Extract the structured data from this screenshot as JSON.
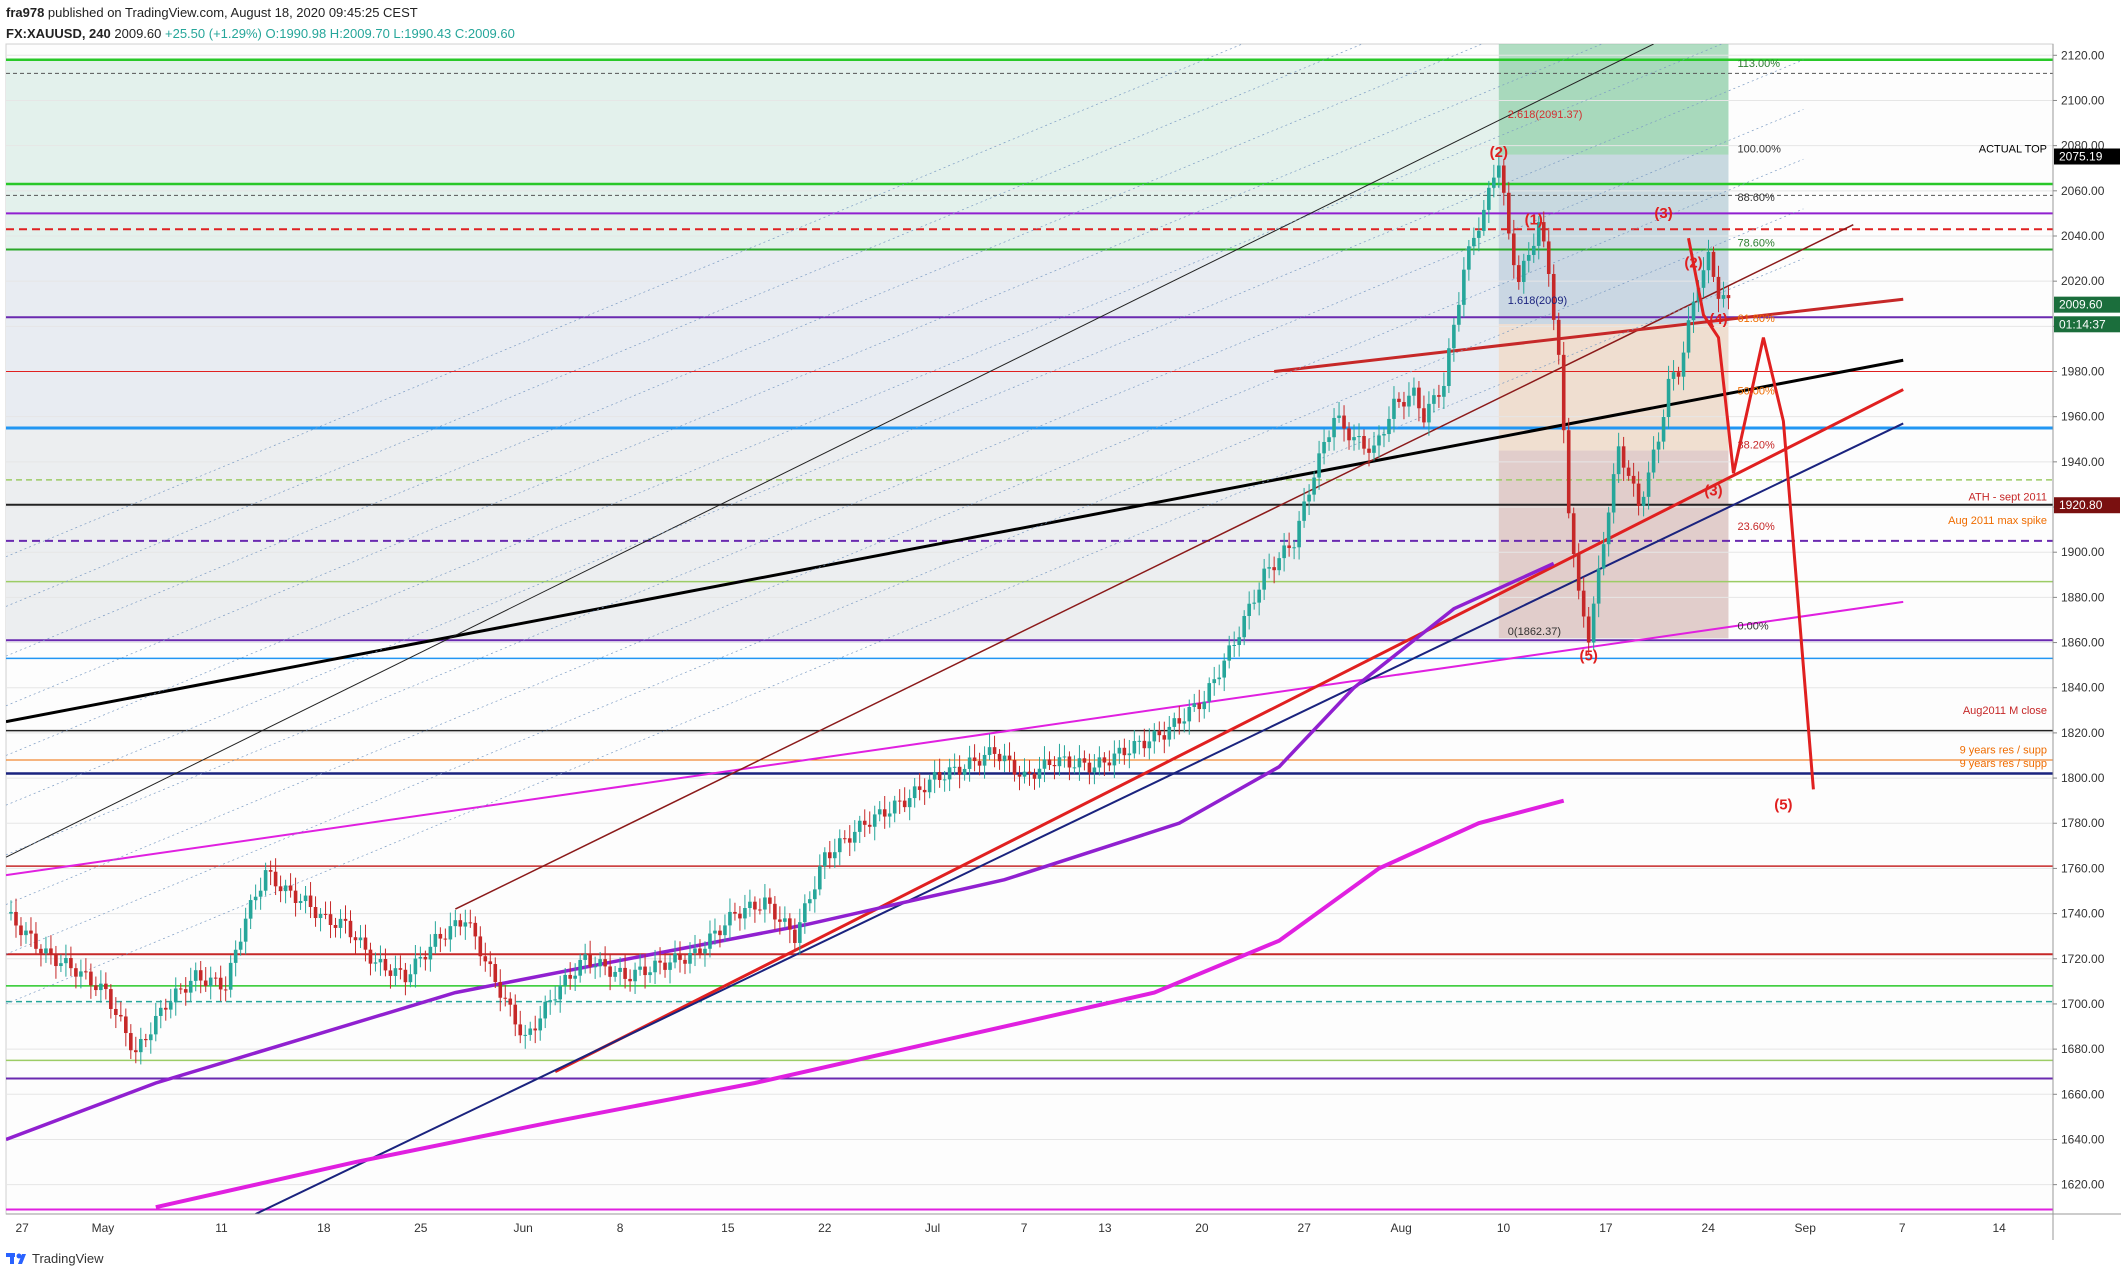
{
  "header": {
    "publisher": "fra978",
    "published_text": " published on TradingView.com, August 18, 2020 09:45:25 CEST",
    "symbol": "FX:XAUUSD, 240",
    "last": "2009.60",
    "change": "+25.50 (+1.29%)",
    "ohlc": "O:1990.98 H:2009.70 L:1990.43 C:2009.60"
  },
  "footer": {
    "brand": "TradingView"
  },
  "colors": {
    "up_candle": "#26a69a",
    "down_candle": "#c62828",
    "wave_red": "#e02020",
    "magenta": "#e020e0",
    "purple": "#9020d0",
    "navy": "#1a237e",
    "green_line": "#28c828"
  },
  "chart_data": {
    "type": "candlestick",
    "symbol": "XAUUSD",
    "timeframe": "240",
    "ylim": [
      1607,
      2125
    ],
    "y_ticks": [
      "2120.00",
      "2100.00",
      "2080.00",
      "2060.00",
      "2040.00",
      "2020.00",
      "2000.00",
      "1980.00",
      "1960.00",
      "1940.00",
      "1920.00",
      "1900.00",
      "1880.00",
      "1860.00",
      "1840.00",
      "1820.00",
      "1800.00",
      "1780.00",
      "1760.00",
      "1740.00",
      "1720.00",
      "1700.00",
      "1680.00",
      "1660.00",
      "1640.00",
      "1620.00"
    ],
    "x_ticks": [
      "27",
      "May",
      "11",
      "18",
      "25",
      "Jun",
      "8",
      "15",
      "22",
      "Jul",
      "7",
      "13",
      "20",
      "27",
      "Aug",
      "10",
      "17",
      "24",
      "Sep",
      "7",
      "14"
    ],
    "price_badges": [
      {
        "price": 2075.19,
        "text": "2075.19",
        "bg": "#000000"
      },
      {
        "price": 2009.6,
        "text": "2009.60",
        "bg": "#1b6e3c"
      },
      {
        "price": 2000.9,
        "text": "01:14:37",
        "bg": "#1b6e3c"
      },
      {
        "price": 1920.8,
        "text": "1920.80",
        "bg": "#7a1010"
      }
    ],
    "price_path": [
      [
        0,
        1740
      ],
      [
        8,
        1722
      ],
      [
        14,
        1715
      ],
      [
        20,
        1705
      ],
      [
        26,
        1678
      ],
      [
        32,
        1700
      ],
      [
        38,
        1712
      ],
      [
        44,
        1708
      ],
      [
        48,
        1738
      ],
      [
        52,
        1758
      ],
      [
        56,
        1750
      ],
      [
        60,
        1745
      ],
      [
        64,
        1737
      ],
      [
        68,
        1735
      ],
      [
        74,
        1718
      ],
      [
        80,
        1712
      ],
      [
        86,
        1728
      ],
      [
        92,
        1738
      ],
      [
        98,
        1710
      ],
      [
        104,
        1684
      ],
      [
        110,
        1705
      ],
      [
        116,
        1720
      ],
      [
        124,
        1712
      ],
      [
        132,
        1718
      ],
      [
        138,
        1722
      ],
      [
        146,
        1740
      ],
      [
        152,
        1745
      ],
      [
        158,
        1730
      ],
      [
        164,
        1765
      ],
      [
        172,
        1780
      ],
      [
        180,
        1790
      ],
      [
        186,
        1800
      ],
      [
        192,
        1805
      ],
      [
        198,
        1812
      ],
      [
        204,
        1800
      ],
      [
        210,
        1808
      ],
      [
        218,
        1805
      ],
      [
        224,
        1812
      ],
      [
        232,
        1820
      ],
      [
        240,
        1835
      ],
      [
        246,
        1860
      ],
      [
        252,
        1890
      ],
      [
        258,
        1905
      ],
      [
        262,
        1935
      ],
      [
        266,
        1960
      ],
      [
        270,
        1950
      ],
      [
        274,
        1945
      ],
      [
        278,
        1965
      ],
      [
        282,
        1970
      ],
      [
        284,
        1960
      ],
      [
        288,
        1975
      ],
      [
        290,
        2000
      ],
      [
        292,
        2025
      ],
      [
        294,
        2040
      ],
      [
        296,
        2050
      ],
      [
        298,
        2068
      ],
      [
        299,
        2073
      ],
      [
        301,
        2040
      ],
      [
        303,
        2020
      ],
      [
        305,
        2032
      ],
      [
        307,
        2045
      ],
      [
        309,
        2025
      ],
      [
        311,
        1985
      ],
      [
        313,
        1920
      ],
      [
        315,
        1880
      ],
      [
        317,
        1863
      ],
      [
        319,
        1890
      ],
      [
        321,
        1920
      ],
      [
        323,
        1945
      ],
      [
        325,
        1935
      ],
      [
        327,
        1920
      ],
      [
        329,
        1935
      ],
      [
        331,
        1950
      ],
      [
        333,
        1975
      ],
      [
        335,
        1980
      ],
      [
        337,
        2000
      ],
      [
        339,
        2020
      ],
      [
        341,
        2030
      ],
      [
        343,
        2015
      ],
      [
        345,
        2010
      ]
    ],
    "waves": [
      {
        "label": "(1)",
        "at": [
          306,
          2045
        ]
      },
      {
        "label": "(2)",
        "at": [
          299,
          2075
        ]
      },
      {
        "label": "(3)",
        "at": [
          332,
          2048
        ]
      },
      {
        "label": "(4)",
        "at": [
          343,
          2001
        ]
      },
      {
        "label": "(5)",
        "at": [
          317,
          1852
        ]
      },
      {
        "label": "(2)",
        "at": [
          338,
          2026
        ]
      },
      {
        "label": "(3)",
        "at": [
          342,
          1925
        ]
      },
      {
        "label": "(5)",
        "at": [
          356,
          1786
        ]
      }
    ],
    "forecast_path": [
      [
        337,
        2039
      ],
      [
        340,
        2005
      ],
      [
        343,
        1995
      ],
      [
        346,
        1935
      ],
      [
        348,
        1955
      ],
      [
        352,
        1995
      ],
      [
        356,
        1958
      ],
      [
        362,
        1795
      ]
    ],
    "fib_labels": [
      {
        "text": "2.618(2091.37)",
        "price": 2091.37,
        "color": "#d32f2f"
      },
      {
        "text": "113.00%",
        "price": 2114.0,
        "color": "#2e7d32"
      },
      {
        "text": "100.00%",
        "price": 2076.0,
        "color": "#333333"
      },
      {
        "text": "88.60%",
        "price": 2054.6,
        "color": "#333333"
      },
      {
        "text": "78.60%",
        "price": 2034.5,
        "color": "#2e7d32"
      },
      {
        "text": "61.80%",
        "price": 2001.0,
        "color": "#ef6c00"
      },
      {
        "text": "50.00%",
        "price": 1969.0,
        "color": "#ef6c00"
      },
      {
        "text": "38.20%",
        "price": 1945.0,
        "color": "#c62828"
      },
      {
        "text": "23.60%",
        "price": 1909.0,
        "color": "#c62828"
      },
      {
        "text": "0.00%",
        "price": 1865.0,
        "color": "#333333"
      },
      {
        "text": "0(1862.37)",
        "price": 1862.37,
        "color": "#333333"
      },
      {
        "text": "1.618(2009)",
        "price": 2009.0,
        "color": "#1a237e"
      }
    ],
    "annotations": [
      {
        "text": "ACTUAL TOP",
        "price": 2076.5,
        "color": "#000000"
      },
      {
        "text": "ATH - sept 2011",
        "price": 1922.5,
        "color": "#c62828"
      },
      {
        "text": "Aug 2011 max spike",
        "price": 1912.0,
        "color": "#ef6c00"
      },
      {
        "text": "Aug2011 M close",
        "price": 1828.0,
        "color": "#c62828"
      },
      {
        "text": "9 years res / supp",
        "price": 1810.5,
        "color": "#ef6c00"
      },
      {
        "text": "9 years res / supp",
        "price": 1804.5,
        "color": "#ef6c00"
      }
    ],
    "horizontal_levels": [
      {
        "price": 2118,
        "color": "#28c828",
        "w": 2.5,
        "dash": ""
      },
      {
        "price": 2112,
        "color": "#555555",
        "w": 1,
        "dash": "4 3"
      },
      {
        "price": 2063,
        "color": "#28c828",
        "w": 2.5,
        "dash": ""
      },
      {
        "price": 2058,
        "color": "#555555",
        "w": 1,
        "dash": "4 3"
      },
      {
        "price": 2050,
        "color": "#9020d0",
        "w": 2,
        "dash": ""
      },
      {
        "price": 2043,
        "color": "#e02020",
        "w": 2,
        "dash": "8 5"
      },
      {
        "price": 2034,
        "color": "#28a828",
        "w": 2,
        "dash": ""
      },
      {
        "price": 2004,
        "color": "#6a2ab0",
        "w": 2,
        "dash": ""
      },
      {
        "price": 1980,
        "color": "#e02020",
        "w": 1,
        "dash": ""
      },
      {
        "price": 1955,
        "color": "#2196f3",
        "w": 3,
        "dash": ""
      },
      {
        "price": 1932,
        "color": "#9ccc65",
        "w": 1.5,
        "dash": "6 4"
      },
      {
        "price": 1921,
        "color": "#222222",
        "w": 2,
        "dash": ""
      },
      {
        "price": 1905,
        "color": "#6a2ab0",
        "w": 2,
        "dash": "8 5"
      },
      {
        "price": 1887,
        "color": "#9ccc65",
        "w": 1.5,
        "dash": ""
      },
      {
        "price": 1861,
        "color": "#6a2ab0",
        "w": 2,
        "dash": ""
      },
      {
        "price": 1853,
        "color": "#2196f3",
        "w": 1.5,
        "dash": ""
      },
      {
        "price": 1821,
        "color": "#222222",
        "w": 1.5,
        "dash": ""
      },
      {
        "price": 1808,
        "color": "#ef6c00",
        "w": 1,
        "dash": ""
      },
      {
        "price": 1802,
        "color": "#1a237e",
        "w": 2.5,
        "dash": ""
      },
      {
        "price": 1761,
        "color": "#c62828",
        "w": 1.5,
        "dash": ""
      },
      {
        "price": 1722,
        "color": "#c62828",
        "w": 2,
        "dash": ""
      },
      {
        "price": 1708,
        "color": "#28c828",
        "w": 1.5,
        "dash": ""
      },
      {
        "price": 1701,
        "color": "#26a69a",
        "w": 1.5,
        "dash": "6 4"
      },
      {
        "price": 1675,
        "color": "#9ccc65",
        "w": 1.5,
        "dash": ""
      },
      {
        "price": 1667,
        "color": "#6a2ab0",
        "w": 2,
        "dash": ""
      },
      {
        "price": 1609,
        "color": "#e020e0",
        "w": 2,
        "dash": ""
      }
    ],
    "trend_lines": [
      {
        "from": [
          0,
          1825
        ],
        "to": [
          380,
          1985
        ],
        "color": "#000000",
        "w": 3
      },
      {
        "from": [
          0,
          1757
        ],
        "to": [
          380,
          1878
        ],
        "color": "#e020e0",
        "w": 2
      },
      {
        "from": [
          110,
          1670
        ],
        "to": [
          380,
          1972
        ],
        "color": "#e02020",
        "w": 3
      },
      {
        "from": [
          50,
          1607
        ],
        "to": [
          380,
          1957
        ],
        "color": "#1a237e",
        "w": 2
      },
      {
        "from": [
          0,
          1765
        ],
        "to": [
          330,
          2125
        ],
        "color": "#222222",
        "w": 1
      },
      {
        "from": [
          90,
          1742
        ],
        "to": [
          370,
          2045
        ],
        "color": "#8b1a1a",
        "w": 1.5
      },
      {
        "from": [
          254,
          1980
        ],
        "to": [
          380,
          2012
        ],
        "color": "#c62828",
        "w": 3
      }
    ],
    "ma_curves": [
      {
        "name": "",
        "color": "#9020d0",
        "w": 3.5,
        "points": [
          [
            0,
            1640
          ],
          [
            30,
            1665
          ],
          [
            60,
            1685
          ],
          [
            90,
            1705
          ],
          [
            120,
            1718
          ],
          [
            160,
            1735
          ],
          [
            200,
            1755
          ],
          [
            235,
            1780
          ],
          [
            255,
            1805
          ],
          [
            270,
            1840
          ],
          [
            290,
            1875
          ],
          [
            310,
            1895
          ]
        ]
      },
      {
        "name": "",
        "color": "#e020e0",
        "w": 4,
        "points": [
          [
            30,
            1610
          ],
          [
            70,
            1630
          ],
          [
            110,
            1648
          ],
          [
            150,
            1665
          ],
          [
            190,
            1685
          ],
          [
            230,
            1705
          ],
          [
            255,
            1728
          ],
          [
            275,
            1760
          ],
          [
            295,
            1780
          ],
          [
            312,
            1790
          ]
        ]
      }
    ]
  }
}
